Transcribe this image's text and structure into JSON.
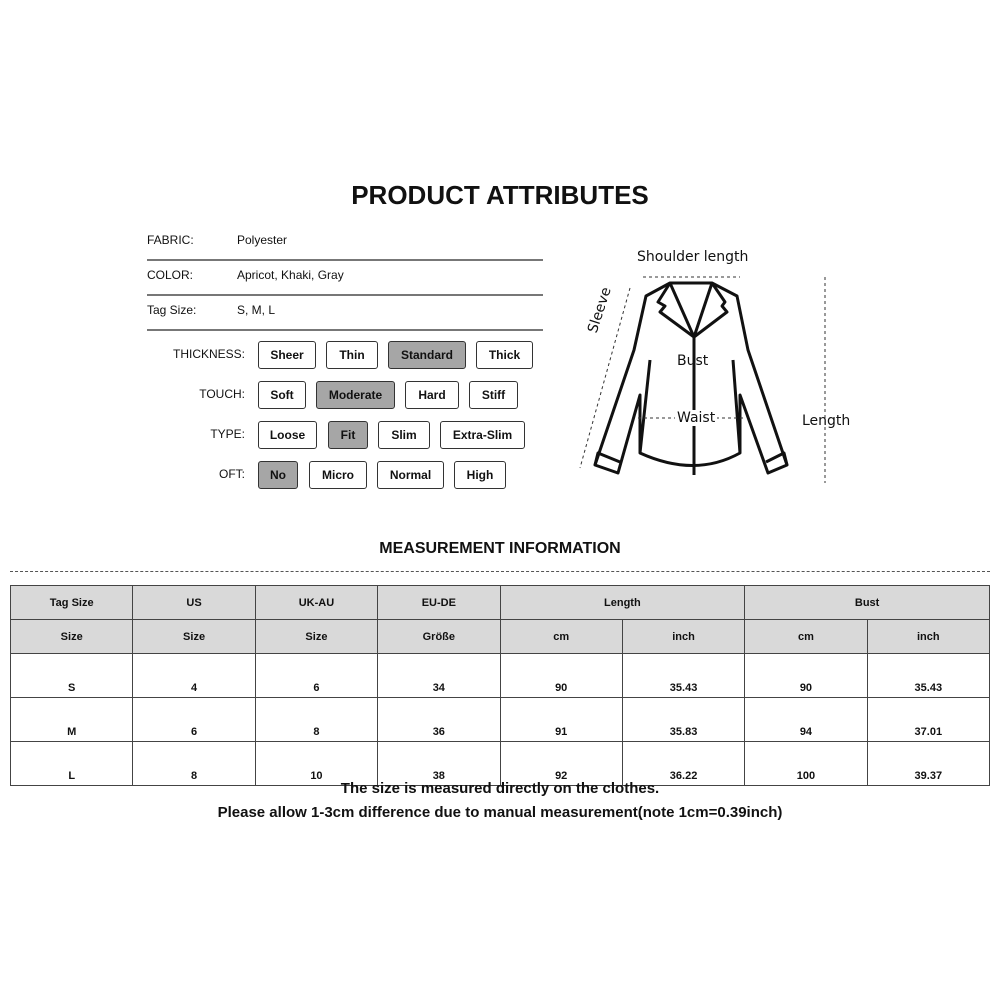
{
  "title": "PRODUCT ATTRIBUTES",
  "attributes": [
    {
      "key": "FABRIC:",
      "value": "Polyester"
    },
    {
      "key": "COLOR:",
      "value": "Apricot,  Khaki,  Gray"
    },
    {
      "key": "Tag Size:",
      "value": "S,  M,  L"
    }
  ],
  "options": [
    {
      "label": "THICKNESS:",
      "items": [
        "Sheer",
        "Thin",
        "Standard",
        "Thick"
      ],
      "selected": "Standard"
    },
    {
      "label": "TOUCH:",
      "items": [
        "Soft",
        "Moderate",
        "Hard",
        "Stiff"
      ],
      "selected": "Moderate"
    },
    {
      "label": "TYPE:",
      "items": [
        "Loose",
        "Fit",
        "Slim",
        "Extra-Slim"
      ],
      "selected": "Fit"
    },
    {
      "label": "OFT:",
      "items": [
        "No",
        "Micro",
        "Normal",
        "High"
      ],
      "selected": "No"
    }
  ],
  "diagram": {
    "shoulder": "Shoulder length",
    "sleeve": "Sleeve",
    "bust": "Bust",
    "waist": "Waist",
    "length": "Length"
  },
  "measurement": {
    "title": "MEASUREMENT INFORMATION",
    "header1": [
      "Tag Size",
      "US",
      "UK-AU",
      "EU-DE",
      "Length",
      "Bust"
    ],
    "header2": [
      "Size",
      "Size",
      "Size",
      "Größe",
      "cm",
      "inch",
      "cm",
      "inch"
    ],
    "rows": [
      [
        "S",
        "4",
        "6",
        "34",
        "90",
        "35.43",
        "90",
        "35.43"
      ],
      [
        "M",
        "6",
        "8",
        "36",
        "91",
        "35.83",
        "94",
        "37.01"
      ],
      [
        "L",
        "8",
        "10",
        "38",
        "92",
        "36.22",
        "100",
        "39.37"
      ]
    ]
  },
  "notes": [
    "The size is measured directly on the clothes.",
    "Please allow 1-3cm difference due to manual measurement(note 1cm=0.39inch)"
  ],
  "colors": {
    "selected": "#a6a6a6",
    "header_bg": "#d9d9d9"
  }
}
